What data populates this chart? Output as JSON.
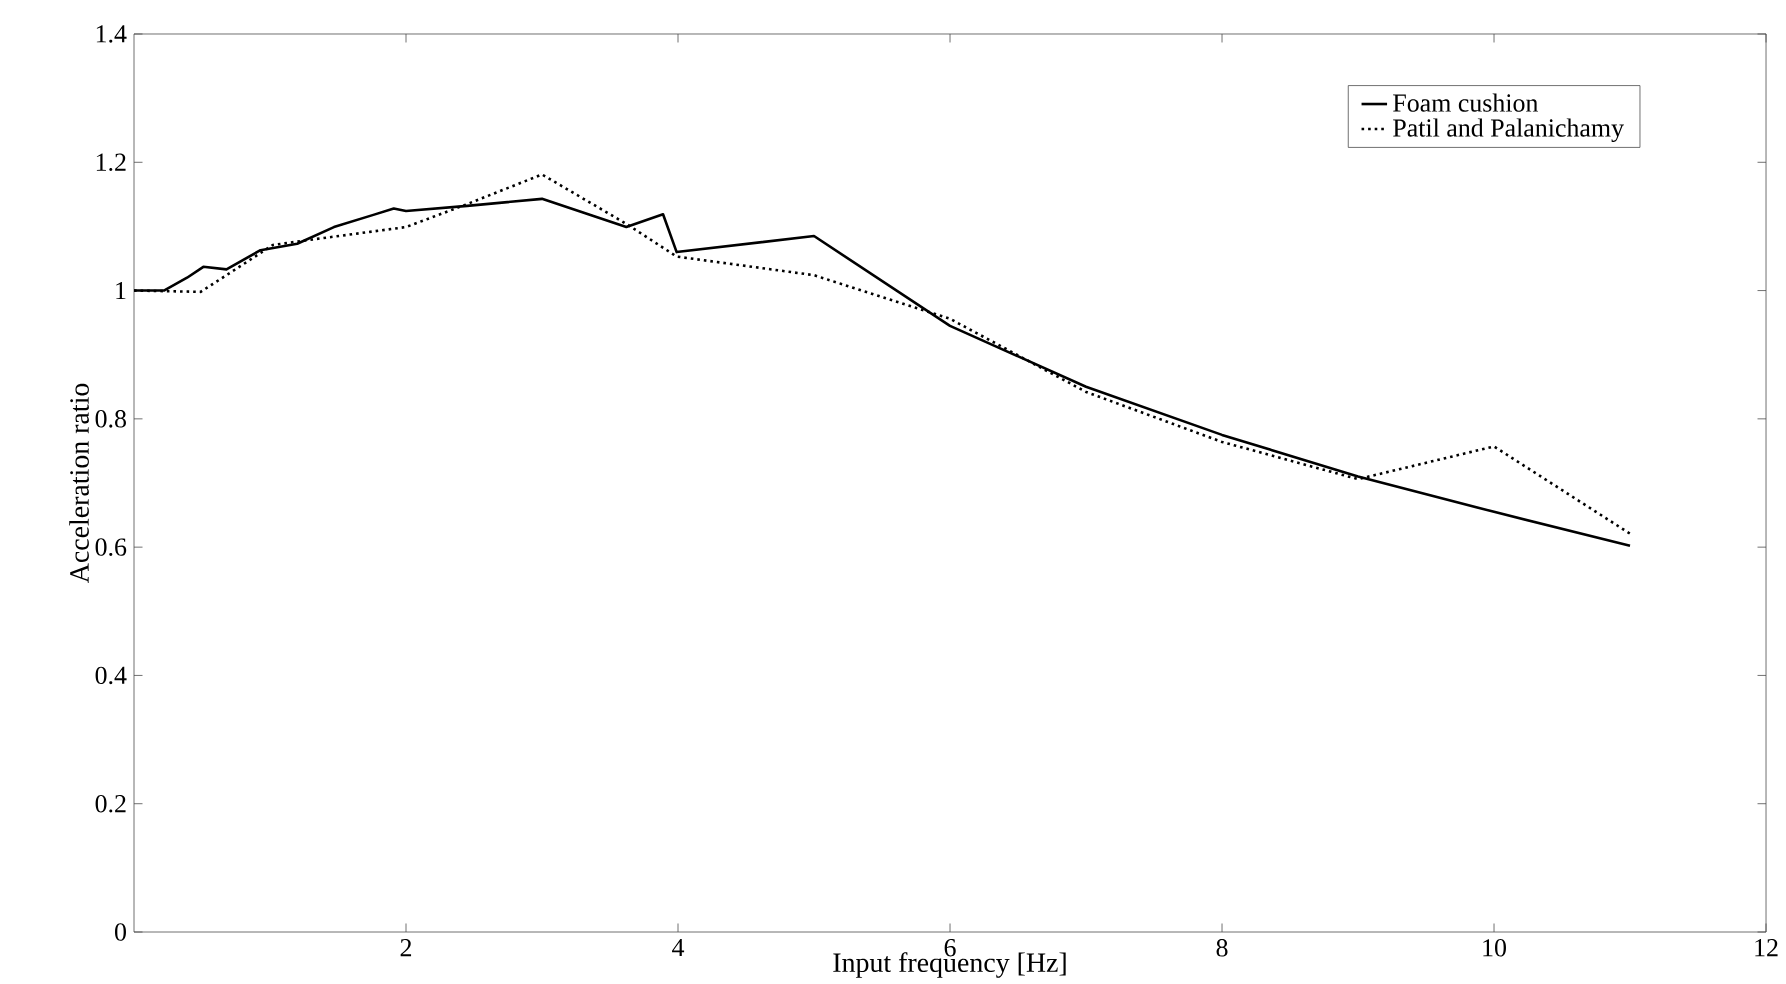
{
  "chart_data": {
    "type": "line",
    "xlabel": "Input frequency [Hz]",
    "ylabel": "Acceleration ratio",
    "xlim": [
      0,
      12
    ],
    "xticks": [
      2,
      4,
      6,
      8,
      10,
      12
    ],
    "ylim": [
      0,
      1.4
    ],
    "yticks": [
      0,
      0.2,
      0.4,
      0.6,
      0.8,
      1,
      1.2,
      1.4
    ],
    "grid": false,
    "legend": "top right",
    "series": [
      {
        "name": "Foam cushion",
        "color": "#000000",
        "line_style": "solid",
        "x": [
          0,
          0.22,
          0.39,
          0.51,
          0.68,
          0.93,
          1.2,
          1.47,
          1.76,
          1.91,
          2.0,
          2.45,
          3.0,
          3.62,
          3.89,
          3.99,
          5.0,
          6.0,
          7.0,
          8.0,
          9.0,
          10.0,
          11.0
        ],
        "values": [
          1.0,
          1.0,
          1.02,
          1.037,
          1.033,
          1.063,
          1.073,
          1.099,
          1.118,
          1.128,
          1.124,
          1.132,
          1.143,
          1.099,
          1.119,
          1.06,
          1.085,
          0.945,
          0.85,
          0.775,
          0.71,
          0.655,
          0.602
        ]
      },
      {
        "name": "Patil and Palanichamy",
        "color": "#000000",
        "line_style": "dotted",
        "x": [
          0,
          0.49,
          0.68,
          1.02,
          1.22,
          2.0,
          2.44,
          3.0,
          3.62,
          3.99,
          5.0,
          6.0,
          7.0,
          8.0,
          9.0,
          10.0,
          11.0
        ],
        "values": [
          1.0,
          0.998,
          1.024,
          1.071,
          1.077,
          1.099,
          1.134,
          1.181,
          1.104,
          1.053,
          1.024,
          0.956,
          0.842,
          0.764,
          0.706,
          0.757,
          0.621
        ]
      }
    ]
  }
}
